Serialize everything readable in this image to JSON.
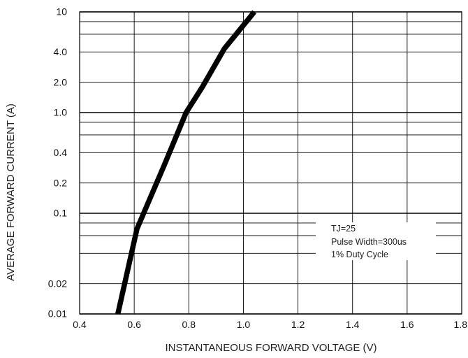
{
  "chart_data": {
    "type": "line",
    "title": "",
    "xlabel": "INSTANTANEOUS FORWARD VOLTAGE (V)",
    "ylabel": "AVERAGE FORWARD CURRENT (A)",
    "x_scale": "linear",
    "y_scale": "log",
    "xlim": [
      0.4,
      1.8
    ],
    "ylim": [
      0.01,
      10
    ],
    "grid": true,
    "x_ticks": [
      0.4,
      0.6,
      0.8,
      1.0,
      1.2,
      1.4,
      1.6,
      1.8
    ],
    "x_tick_labels": [
      "0.4",
      "0.6",
      "0.8",
      "1.0",
      "1.2",
      "1.4",
      "1.6",
      "1.8"
    ],
    "y_ticks": [
      0.01,
      0.02,
      0.1,
      0.2,
      0.4,
      1.0,
      2.0,
      4.0,
      10
    ],
    "y_tick_labels": [
      "0.01",
      "0.02",
      "0.1",
      "0.2",
      "0.4",
      "1.0",
      "2.0",
      "4.0",
      "10"
    ],
    "y_minor_gridlines": [
      0.04,
      0.06,
      0.08,
      0.4,
      0.6,
      0.8,
      4.0,
      6.0,
      8.0
    ],
    "series": [
      {
        "x": [
          0.54,
          0.61,
          0.71,
          0.79,
          0.85,
          0.93,
          1.04
        ],
        "y": [
          0.01,
          0.07,
          0.3,
          1.0,
          1.8,
          4.3,
          10
        ],
        "color": "#000000"
      }
    ],
    "annotation": {
      "lines": [
        "TJ=25",
        "Pulse Width=300us",
        "1% Duty Cycle"
      ],
      "placement": "lower-right"
    }
  }
}
